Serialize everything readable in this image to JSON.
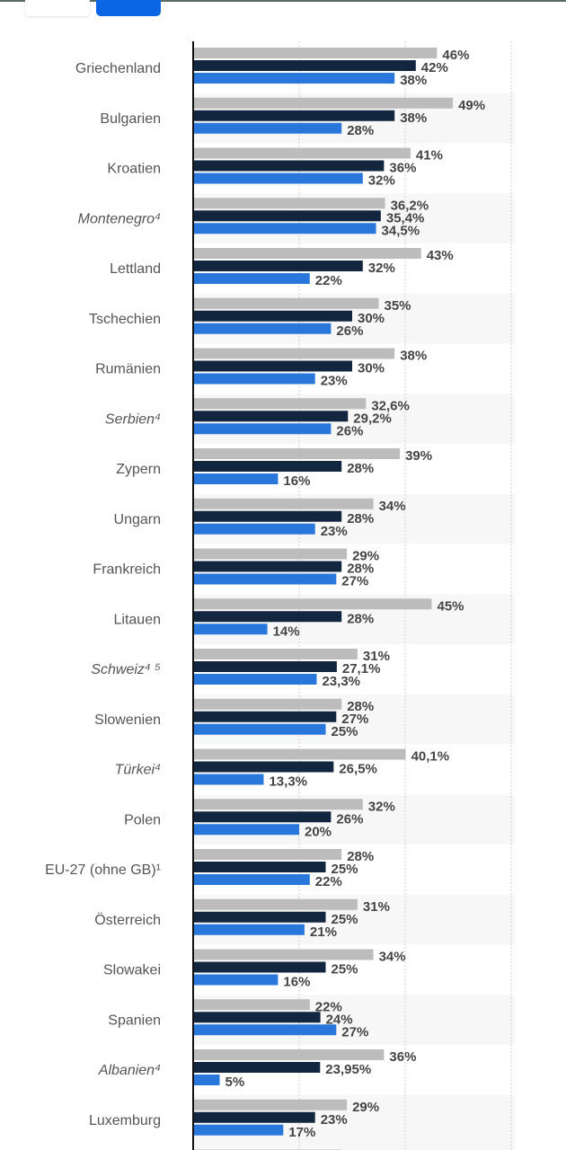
{
  "buttons": [
    {
      "name": "option-1"
    },
    {
      "name": "option-2",
      "active": true
    }
  ],
  "chart_data": {
    "type": "bar",
    "orientation": "horizontal",
    "xlim": [
      0,
      60
    ],
    "grid": true,
    "colors": [
      "#bcbcbc",
      "#12263f",
      "#2a77dc"
    ],
    "categories": [
      {
        "label": "Griechenland",
        "italic": false
      },
      {
        "label": "Bulgarien",
        "italic": false
      },
      {
        "label": "Kroatien",
        "italic": false
      },
      {
        "label": "Montenegro⁴",
        "italic": true
      },
      {
        "label": "Lettland",
        "italic": false
      },
      {
        "label": "Tschechien",
        "italic": false
      },
      {
        "label": "Rumänien",
        "italic": false
      },
      {
        "label": "Serbien⁴",
        "italic": true
      },
      {
        "label": "Zypern",
        "italic": false
      },
      {
        "label": "Ungarn",
        "italic": false
      },
      {
        "label": "Frankreich",
        "italic": false
      },
      {
        "label": "Litauen",
        "italic": false
      },
      {
        "label": "Schweiz⁴ ⁵",
        "italic": true
      },
      {
        "label": "Slowenien",
        "italic": false
      },
      {
        "label": "Türkei⁴",
        "italic": true
      },
      {
        "label": "Polen",
        "italic": false
      },
      {
        "label": "EU-27 (ohne GB)¹",
        "italic": false
      },
      {
        "label": "Österreich",
        "italic": false
      },
      {
        "label": "Slowakei",
        "italic": false
      },
      {
        "label": "Spanien",
        "italic": false
      },
      {
        "label": "Albanien⁴",
        "italic": true
      },
      {
        "label": "Luxemburg",
        "italic": false
      }
    ],
    "series": [
      {
        "values": [
          46,
          49,
          41,
          36.2,
          43,
          35,
          38,
          32.6,
          39,
          34,
          29,
          45,
          31,
          28,
          40.1,
          32,
          28,
          31,
          34,
          22,
          36,
          29
        ],
        "labels": [
          "46%",
          "49%",
          "41%",
          "36,2%",
          "43%",
          "35%",
          "38%",
          "32,6%",
          "39%",
          "34%",
          "29%",
          "45%",
          "31%",
          "28%",
          "40,1%",
          "32%",
          "28%",
          "31%",
          "34%",
          "22%",
          "36%",
          "29%"
        ]
      },
      {
        "values": [
          42,
          38,
          36,
          35.4,
          32,
          30,
          30,
          29.2,
          28,
          28,
          28,
          28,
          27.1,
          27,
          26.5,
          26,
          25,
          25,
          25,
          24,
          23.95,
          23
        ],
        "labels": [
          "42%",
          "38%",
          "36%",
          "35,4%",
          "32%",
          "30%",
          "30%",
          "29,2%",
          "28%",
          "28%",
          "28%",
          "28%",
          "27,1%",
          "27%",
          "26,5%",
          "26%",
          "25%",
          "25%",
          "25%",
          "24%",
          "23,95%",
          "23%"
        ]
      },
      {
        "values": [
          38,
          28,
          32,
          34.5,
          22,
          26,
          23,
          26,
          16,
          23,
          27,
          14,
          23.3,
          25,
          13.3,
          20,
          22,
          21,
          16,
          27,
          5,
          17
        ],
        "labels": [
          "38%",
          "28%",
          "32%",
          "34,5%",
          "22%",
          "26%",
          "23%",
          "26%",
          "16%",
          "23%",
          "27%",
          "14%",
          "23,3%",
          "25%",
          "13,3%",
          "20%",
          "22%",
          "21%",
          "16%",
          "27%",
          "5%",
          "17%"
        ]
      }
    ]
  }
}
